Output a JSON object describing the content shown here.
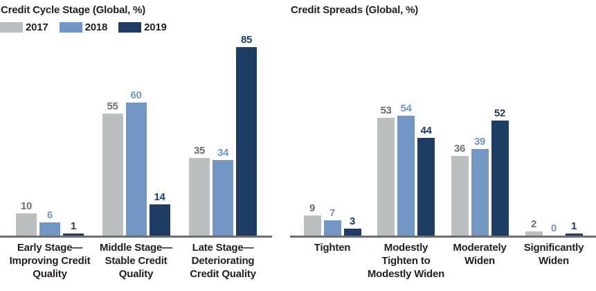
{
  "colors": {
    "background": "#ffffff",
    "text": "#231f20",
    "axis_line": "#6d6e71",
    "bar_2017": "#bcbec0",
    "bar_2018": "#7297c4",
    "bar_2019": "#1f3c64",
    "value_label_2017": "#6d6e71",
    "value_label_2018": "#7297c4",
    "value_label_2019": "#1f3c64"
  },
  "legend": {
    "items": [
      {
        "label": "2017",
        "color": "#bcbec0"
      },
      {
        "label": "2018",
        "color": "#7297c4"
      },
      {
        "label": "2019",
        "color": "#1f3c64"
      }
    ]
  },
  "chart_data": [
    {
      "type": "bar",
      "title": "Credit Cycle Stage (Global, %)",
      "xlabel": "",
      "ylabel": "",
      "y_axis_visible": false,
      "value_labels_shown": true,
      "legend_position": "top-left",
      "categories": [
        "Early Stage—Improving Credit Quality",
        "Middle Stage—Stable Credit Quality",
        "Late Stage—Deteriorating Credit Quality"
      ],
      "category_label_lines": [
        [
          "Early Stage—",
          "Improving Credit",
          "Quality"
        ],
        [
          "Middle Stage—",
          "Stable Credit",
          "Quality"
        ],
        [
          "Late Stage—",
          "Deteriorating",
          "Credit Quality"
        ]
      ],
      "series": [
        {
          "name": "2017",
          "color": "#bcbec0",
          "label_color": "#6d6e71",
          "values": [
            10,
            55,
            35
          ]
        },
        {
          "name": "2018",
          "color": "#7297c4",
          "label_color": "#7297c4",
          "values": [
            6,
            60,
            34
          ]
        },
        {
          "name": "2019",
          "color": "#1f3c64",
          "label_color": "#1f3c64",
          "values": [
            1,
            14,
            85
          ]
        }
      ]
    },
    {
      "type": "bar",
      "title": "Credit Spreads (Global, %)",
      "xlabel": "",
      "ylabel": "",
      "y_axis_visible": false,
      "value_labels_shown": true,
      "legend_position": "none",
      "categories": [
        "Tighten",
        "Modestly Tighten to Modestly Widen",
        "Moderately Widen",
        "Significantly Widen"
      ],
      "category_label_lines": [
        [
          "Tighten"
        ],
        [
          "Modestly",
          "Tighten to",
          "Modestly Widen"
        ],
        [
          "Moderately",
          "Widen"
        ],
        [
          "Significantly",
          "Widen"
        ]
      ],
      "series": [
        {
          "name": "2017",
          "color": "#bcbec0",
          "label_color": "#6d6e71",
          "values": [
            9,
            53,
            36,
            2
          ]
        },
        {
          "name": "2018",
          "color": "#7297c4",
          "label_color": "#7297c4",
          "values": [
            7,
            54,
            39,
            0
          ]
        },
        {
          "name": "2019",
          "color": "#1f3c64",
          "label_color": "#1f3c64",
          "values": [
            3,
            44,
            52,
            1
          ]
        }
      ]
    }
  ]
}
